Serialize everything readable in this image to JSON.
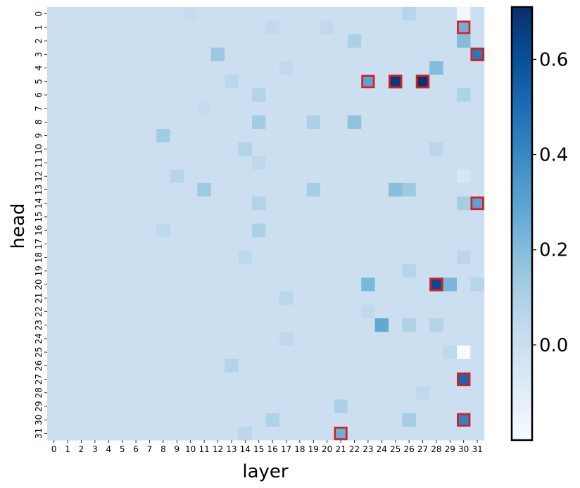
{
  "chart_data": {
    "type": "heatmap",
    "title": "",
    "xlabel": "layer",
    "ylabel": "head",
    "x_categories": [
      "0",
      "1",
      "2",
      "3",
      "4",
      "5",
      "6",
      "7",
      "8",
      "9",
      "10",
      "11",
      "12",
      "13",
      "14",
      "15",
      "16",
      "17",
      "18",
      "19",
      "20",
      "21",
      "22",
      "23",
      "24",
      "25",
      "26",
      "27",
      "28",
      "29",
      "30",
      "31"
    ],
    "y_categories": [
      "0",
      "1",
      "2",
      "3",
      "4",
      "5",
      "6",
      "7",
      "8",
      "9",
      "10",
      "11",
      "12",
      "13",
      "14",
      "15",
      "16",
      "17",
      "18",
      "19",
      "20",
      "21",
      "22",
      "23",
      "24",
      "25",
      "26",
      "27",
      "28",
      "29",
      "30",
      "31"
    ],
    "colorbar": {
      "min": -0.2,
      "max": 0.71,
      "ticks": [
        0.0,
        0.2,
        0.4,
        0.6
      ],
      "tick_labels": [
        "0.0",
        "0.2",
        "0.4",
        "0.6"
      ]
    },
    "colormap": "Blues",
    "baseline_value": 0.0,
    "highlight_color": "#e31a1c",
    "cells": [
      {
        "head": 0,
        "layer": 30,
        "value": -0.17
      },
      {
        "head": 0,
        "layer": 26,
        "value": 0.07
      },
      {
        "head": 0,
        "layer": 10,
        "value": 0.03
      },
      {
        "head": 1,
        "layer": 30,
        "value": 0.25
      },
      {
        "head": 1,
        "layer": 16,
        "value": 0.04
      },
      {
        "head": 1,
        "layer": 20,
        "value": 0.04
      },
      {
        "head": 2,
        "layer": 30,
        "value": 0.2
      },
      {
        "head": 2,
        "layer": 22,
        "value": 0.1
      },
      {
        "head": 3,
        "layer": 31,
        "value": 0.45
      },
      {
        "head": 3,
        "layer": 12,
        "value": 0.15
      },
      {
        "head": 4,
        "layer": 28,
        "value": 0.2
      },
      {
        "head": 4,
        "layer": 17,
        "value": 0.04
      },
      {
        "head": 5,
        "layer": 23,
        "value": 0.3
      },
      {
        "head": 5,
        "layer": 25,
        "value": 0.68
      },
      {
        "head": 5,
        "layer": 27,
        "value": 0.7
      },
      {
        "head": 5,
        "layer": 13,
        "value": 0.06
      },
      {
        "head": 6,
        "layer": 15,
        "value": 0.08
      },
      {
        "head": 6,
        "layer": 30,
        "value": 0.09
      },
      {
        "head": 7,
        "layer": 11,
        "value": 0.03
      },
      {
        "head": 8,
        "layer": 15,
        "value": 0.13
      },
      {
        "head": 8,
        "layer": 22,
        "value": 0.17
      },
      {
        "head": 8,
        "layer": 19,
        "value": 0.1
      },
      {
        "head": 9,
        "layer": 8,
        "value": 0.13
      },
      {
        "head": 10,
        "layer": 14,
        "value": 0.08
      },
      {
        "head": 10,
        "layer": 28,
        "value": 0.06
      },
      {
        "head": 11,
        "layer": 15,
        "value": 0.05
      },
      {
        "head": 12,
        "layer": 9,
        "value": 0.07
      },
      {
        "head": 12,
        "layer": 30,
        "value": -0.05
      },
      {
        "head": 13,
        "layer": 11,
        "value": 0.14
      },
      {
        "head": 13,
        "layer": 19,
        "value": 0.12
      },
      {
        "head": 13,
        "layer": 25,
        "value": 0.19
      },
      {
        "head": 13,
        "layer": 26,
        "value": 0.14
      },
      {
        "head": 14,
        "layer": 31,
        "value": 0.3
      },
      {
        "head": 14,
        "layer": 30,
        "value": 0.12
      },
      {
        "head": 14,
        "layer": 15,
        "value": 0.08
      },
      {
        "head": 16,
        "layer": 15,
        "value": 0.1
      },
      {
        "head": 16,
        "layer": 8,
        "value": 0.05
      },
      {
        "head": 18,
        "layer": 14,
        "value": 0.05
      },
      {
        "head": 18,
        "layer": 30,
        "value": 0.06
      },
      {
        "head": 19,
        "layer": 26,
        "value": 0.07
      },
      {
        "head": 20,
        "layer": 23,
        "value": 0.22
      },
      {
        "head": 20,
        "layer": 28,
        "value": 0.62
      },
      {
        "head": 20,
        "layer": 29,
        "value": 0.22
      },
      {
        "head": 20,
        "layer": 31,
        "value": 0.07
      },
      {
        "head": 21,
        "layer": 17,
        "value": 0.06
      },
      {
        "head": 22,
        "layer": 23,
        "value": 0.04
      },
      {
        "head": 23,
        "layer": 24,
        "value": 0.28
      },
      {
        "head": 23,
        "layer": 26,
        "value": 0.09
      },
      {
        "head": 23,
        "layer": 28,
        "value": 0.08
      },
      {
        "head": 24,
        "layer": 17,
        "value": 0.05
      },
      {
        "head": 25,
        "layer": 30,
        "value": -0.2
      },
      {
        "head": 25,
        "layer": 29,
        "value": 0.05
      },
      {
        "head": 26,
        "layer": 13,
        "value": 0.08
      },
      {
        "head": 27,
        "layer": 30,
        "value": 0.52
      },
      {
        "head": 28,
        "layer": 27,
        "value": 0.04
      },
      {
        "head": 29,
        "layer": 21,
        "value": 0.1
      },
      {
        "head": 30,
        "layer": 30,
        "value": 0.42
      },
      {
        "head": 30,
        "layer": 26,
        "value": 0.12
      },
      {
        "head": 30,
        "layer": 16,
        "value": 0.09
      },
      {
        "head": 31,
        "layer": 21,
        "value": 0.25
      },
      {
        "head": 31,
        "layer": 14,
        "value": 0.06
      }
    ],
    "highlights": [
      {
        "head": 1,
        "layer": 30
      },
      {
        "head": 3,
        "layer": 31
      },
      {
        "head": 5,
        "layer": 23
      },
      {
        "head": 5,
        "layer": 25
      },
      {
        "head": 5,
        "layer": 27
      },
      {
        "head": 14,
        "layer": 31
      },
      {
        "head": 20,
        "layer": 28
      },
      {
        "head": 27,
        "layer": 30
      },
      {
        "head": 30,
        "layer": 30
      },
      {
        "head": 31,
        "layer": 21
      }
    ]
  }
}
